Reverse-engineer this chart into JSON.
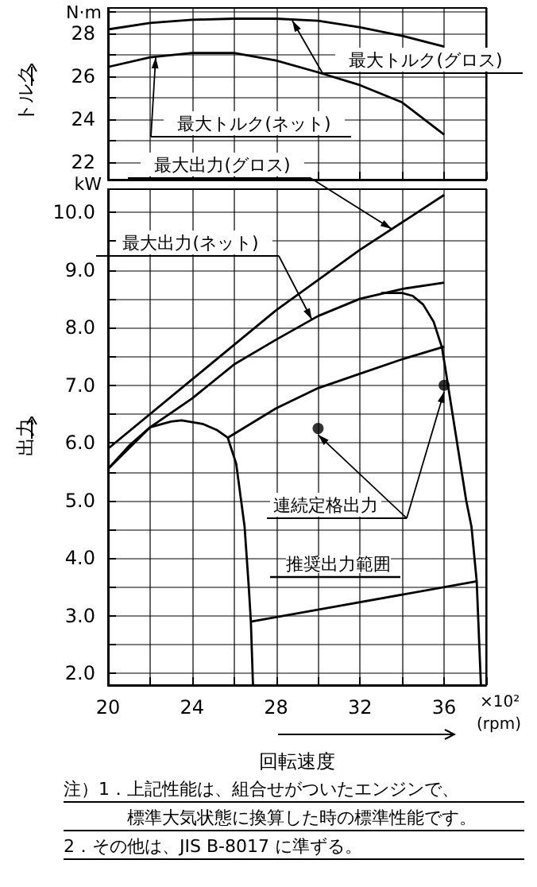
{
  "chart_data": [
    {
      "type": "line",
      "ylabel": "トルク",
      "xlim": [
        20,
        38
      ],
      "xticks": [
        20,
        {
          "value": 22,
          "label": null
        },
        24,
        {
          "value": 26,
          "label": null
        },
        28,
        {
          "value": 30,
          "label": null
        },
        32,
        {
          "value": 34,
          "label": null
        },
        36,
        {
          "value": 38,
          "label": null
        }
      ],
      "ylim": [
        21.2,
        29.2
      ],
      "yticks": [
        22,
        {
          "value": 23,
          "label": null
        },
        24,
        {
          "value": 25,
          "label": null
        },
        26,
        {
          "value": 27,
          "label": null
        },
        28,
        {
          "value": 29,
          "label": null
        }
      ],
      "grid": true,
      "tick_labels": "y",
      "marker": "none",
      "annotations": [
        "N·m",
        "最大トルク(グロス)",
        "最大トルク(ネット)"
      ],
      "series": [
        {
          "color": "#000000",
          "x": [
            20,
            22,
            24,
            26,
            28,
            30,
            32,
            34,
            36
          ],
          "values": [
            28.2,
            28.5,
            28.65,
            28.7,
            28.7,
            28.6,
            28.3,
            27.9,
            27.4
          ]
        },
        {
          "color": "#000000",
          "x": [
            20,
            22,
            24,
            26,
            28,
            30,
            32,
            34,
            36
          ],
          "values": [
            26.45,
            26.9,
            27.1,
            27.1,
            26.75,
            26.2,
            25.6,
            24.8,
            23.3
          ]
        }
      ]
    },
    {
      "type": "line",
      "ylabel": "出力",
      "xlabel": "回転速度",
      "xlim": [
        20,
        38
      ],
      "xticks": [
        20,
        {
          "value": 22,
          "label": null
        },
        24,
        {
          "value": 26,
          "label": null
        },
        28,
        {
          "value": 30,
          "label": null
        },
        32,
        {
          "value": 34,
          "label": null
        },
        36,
        {
          "value": 38,
          "label": null
        }
      ],
      "ylim": [
        1.8,
        10.4
      ],
      "yticks": [
        {
          "value": 2,
          "label": "2.0"
        },
        {
          "value": 2.5,
          "label": null
        },
        {
          "value": 3,
          "label": "3.0"
        },
        {
          "value": 3.5,
          "label": null
        },
        {
          "value": 4,
          "label": "4.0"
        },
        {
          "value": 4.5,
          "label": null
        },
        {
          "value": 5,
          "label": "5.0"
        },
        {
          "value": 5.5,
          "label": null
        },
        {
          "value": 6,
          "label": "6.0"
        },
        {
          "value": 6.5,
          "label": null
        },
        {
          "value": 7,
          "label": "7.0"
        },
        {
          "value": 7.5,
          "label": null
        },
        {
          "value": 8,
          "label": "8.0"
        },
        {
          "value": 8.5,
          "label": null
        },
        {
          "value": 9,
          "label": "9.0"
        },
        {
          "value": 9.5,
          "label": null
        },
        {
          "value": 10,
          "label": "10.0"
        }
      ],
      "grid": true,
      "marker": "none",
      "annotations": [
        "kW",
        "×10²",
        "(rpm)",
        {
          "text": "最大出力(グロス)",
          "x": 33.5,
          "y": 9.71
        },
        {
          "text": "最大出力(ネット)",
          "x": 29.7,
          "y": 8.14
        },
        "推奨出力範囲",
        "注）1．上記性能は、組合せがついたエンジンで、",
        "標準大気状態に換算した時の標準性能です。",
        "2．その他は、JIS B-8017 に準ずる。"
      ],
      "series": [
        {
          "color": "#000000",
          "x": [
            20,
            24,
            28,
            32,
            36
          ],
          "values": [
            5.9,
            7.1,
            8.3,
            9.35,
            10.3
          ]
        },
        {
          "color": "#000000",
          "x": [
            20,
            22,
            24,
            26,
            28,
            30,
            32,
            34,
            36
          ],
          "values": [
            5.55,
            6.27,
            6.77,
            7.36,
            7.79,
            8.2,
            8.5,
            8.67,
            8.78
          ]
        },
        {
          "color": "#000000",
          "x": [
            20,
            21,
            22,
            23,
            23.5,
            24.5,
            25.2,
            25.7,
            26.1,
            26.5,
            26.7,
            26.8,
            26.9
          ],
          "values": [
            5.55,
            5.95,
            6.27,
            6.37,
            6.39,
            6.33,
            6.22,
            6.09,
            5.64,
            4.55,
            3.5,
            2.9,
            1.8
          ]
        },
        {
          "color": "#000000",
          "x": [
            25.7,
            28,
            30,
            32,
            34,
            36
          ],
          "values": [
            6.09,
            6.6,
            6.95,
            7.2,
            7.45,
            7.67
          ]
        },
        {
          "color": "#000000",
          "x": [
            33,
            34,
            34.5,
            35,
            35.5,
            35.9,
            36.5,
            37.05,
            37.3,
            37.55,
            37.75
          ],
          "values": [
            8.6,
            8.6,
            8.55,
            8.4,
            8.1,
            7.65,
            6.27,
            5.0,
            4.55,
            3.6,
            1.8
          ]
        },
        {
          "color": "#000000",
          "x": [
            26.8,
            37.55
          ],
          "values": [
            2.9,
            3.6
          ]
        },
        {
          "type": "scatter",
          "name": "連続定格出力",
          "color": "#000000",
          "marker": "circle",
          "x": [
            30,
            36
          ],
          "values": [
            6.25,
            7.0
          ]
        }
      ]
    }
  ]
}
